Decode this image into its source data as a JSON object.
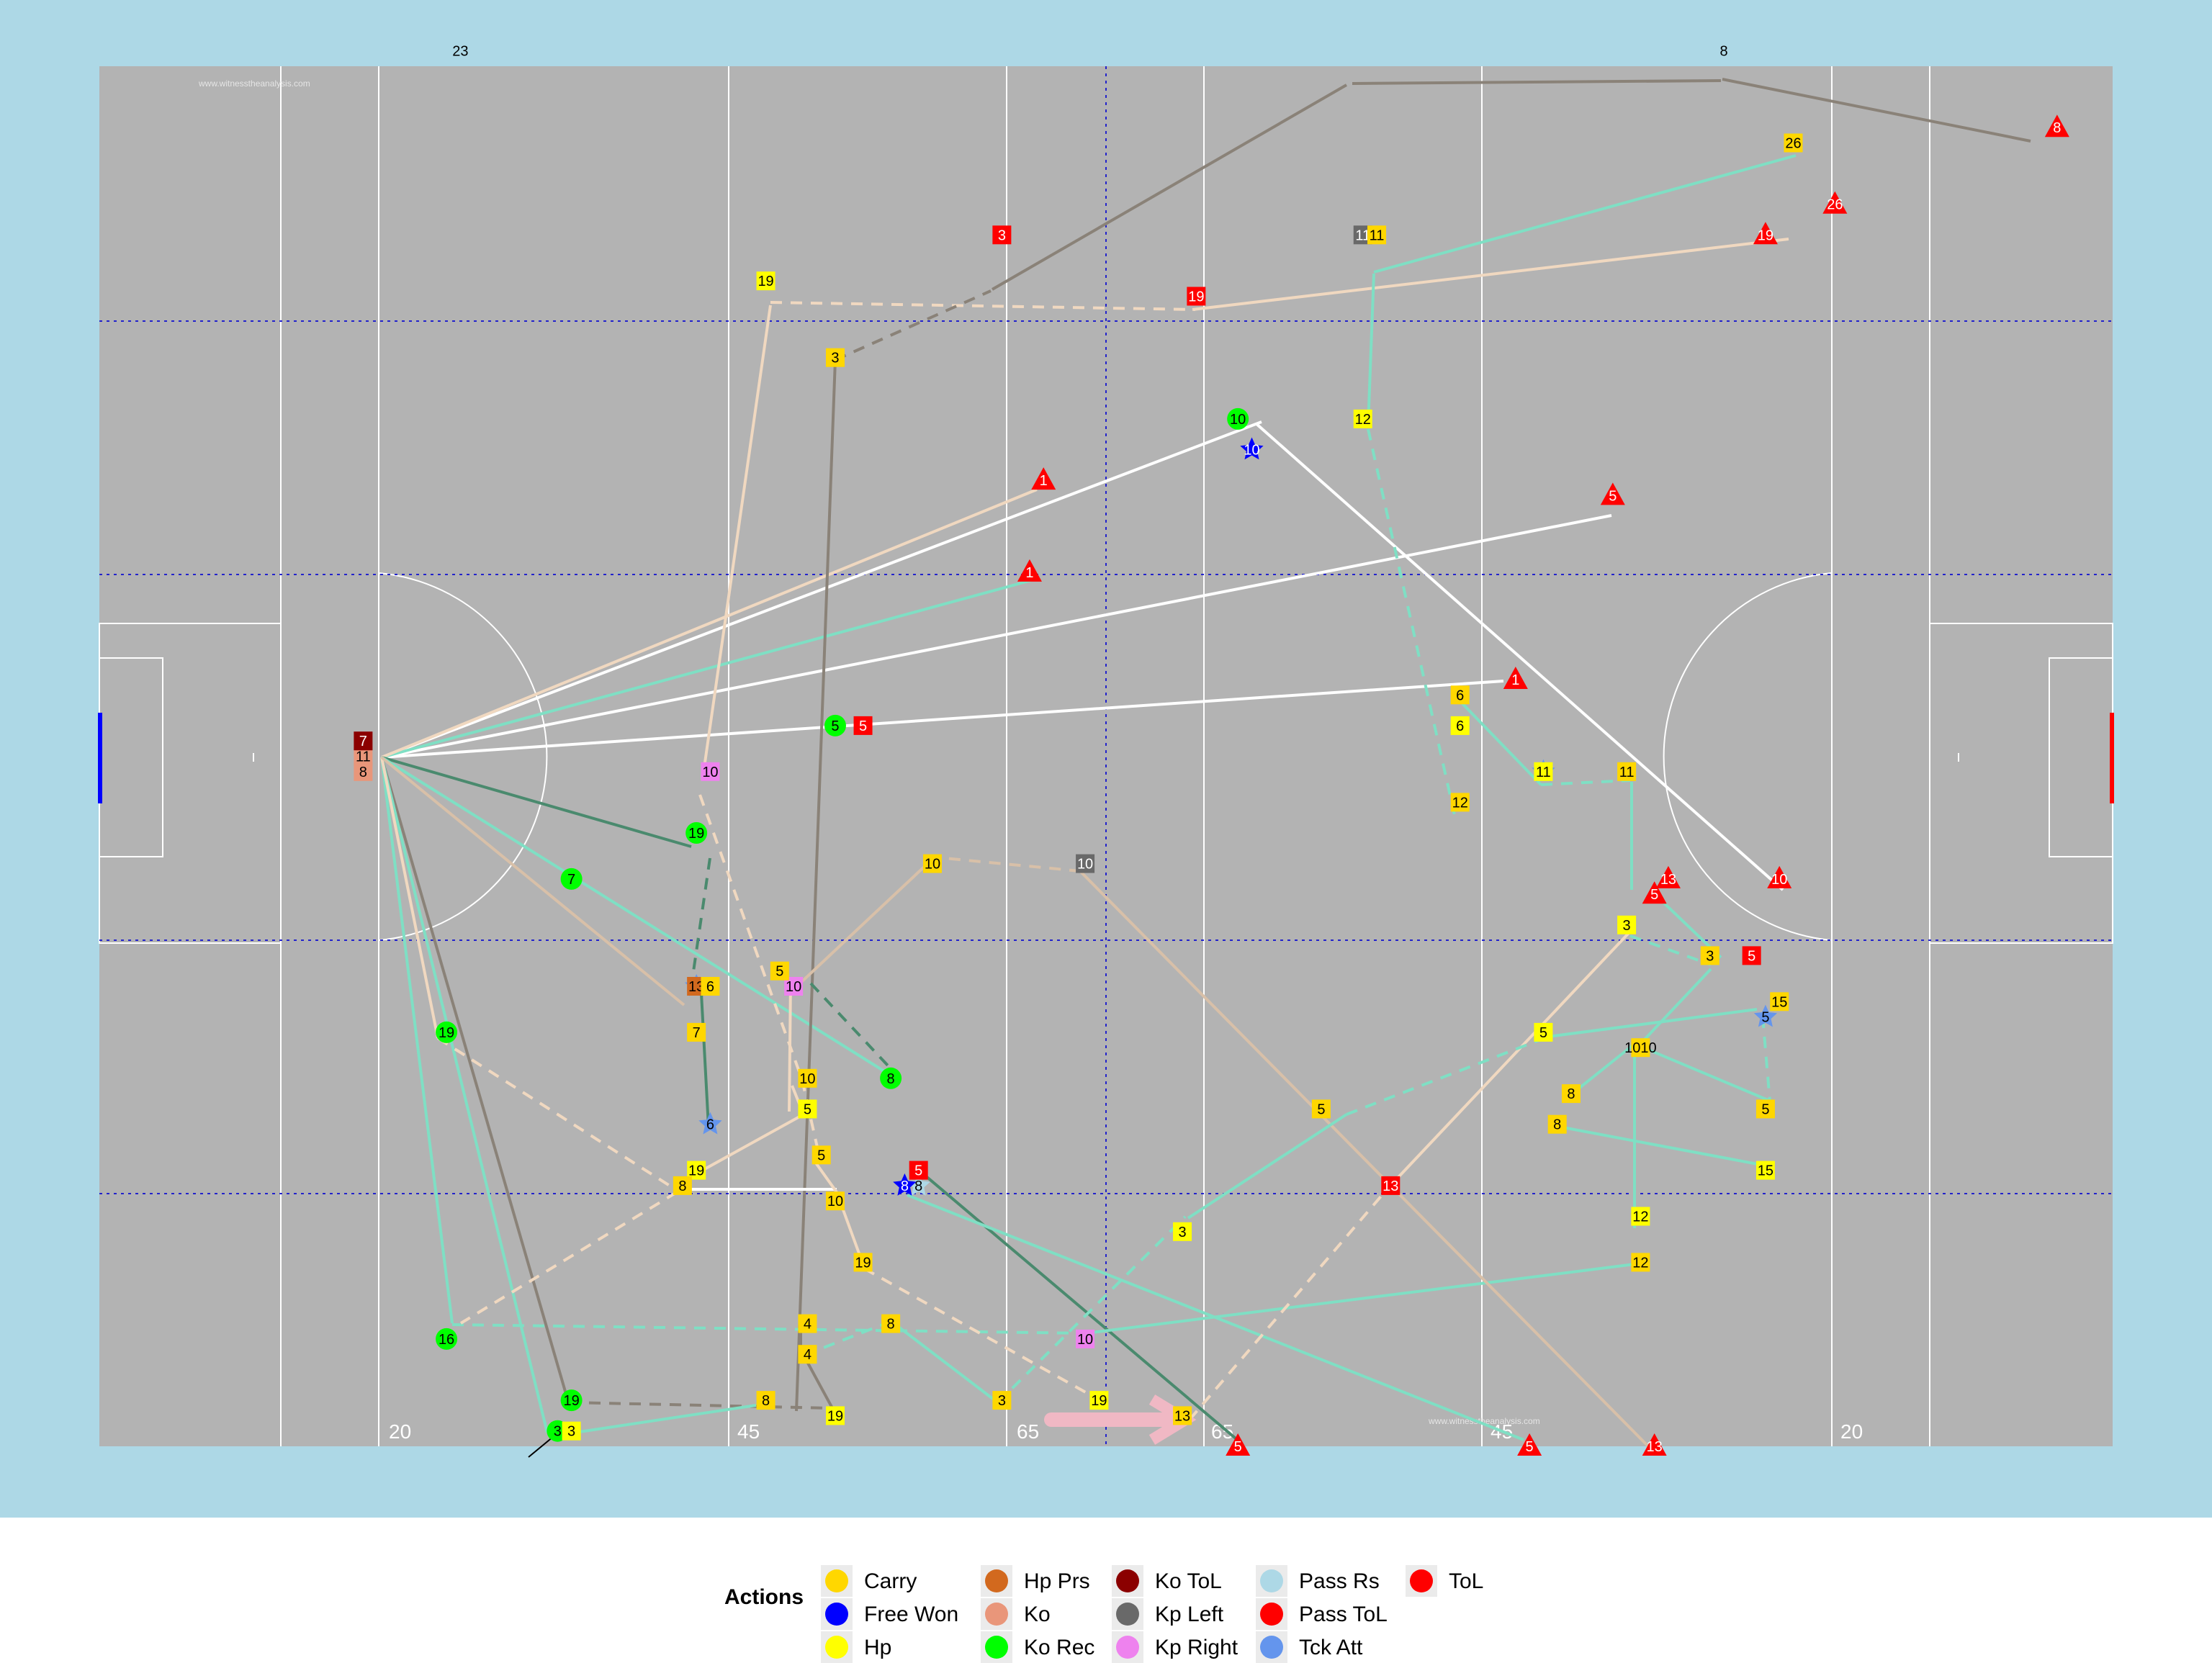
{
  "watermark": "www.witnesstheanalysis.com",
  "distance_labels": [
    "20",
    "45",
    "65",
    "65",
    "45",
    "20"
  ],
  "legend": {
    "title": "Actions",
    "items": [
      {
        "label": "Carry",
        "color": "#ffd700"
      },
      {
        "label": "Free Won",
        "color": "#0000ff"
      },
      {
        "label": "Hp",
        "color": "#ffff00"
      },
      {
        "label": "Hp Prs",
        "color": "#d2691e"
      },
      {
        "label": "Ko",
        "color": "#e9967a"
      },
      {
        "label": "Ko Rec",
        "color": "#00ff00"
      },
      {
        "label": "Ko ToL",
        "color": "#8b0000"
      },
      {
        "label": "Kp Left",
        "color": "#696969"
      },
      {
        "label": "Kp Right",
        "color": "#ee82ee"
      },
      {
        "label": "Pass Rs",
        "color": "#add8e6"
      },
      {
        "label": "Pass ToL",
        "color": "#ff0000"
      },
      {
        "label": "Tck Att",
        "color": "#6495ed"
      },
      {
        "label": "ToL",
        "color": "#ff0000"
      }
    ]
  },
  "chart_data": {
    "type": "scatter",
    "description_units": "pitch coordinates: x in metres along pitch (0-145), y across pitch (0-90)",
    "xlim": [
      0,
      145
    ],
    "ylim": [
      0,
      90
    ],
    "actions": [
      {
        "x": 19,
        "y": 45,
        "label": "11",
        "type": "Ko"
      },
      {
        "x": 19,
        "y": 46,
        "label": "7",
        "type": "Ko ToL"
      },
      {
        "x": 19,
        "y": 44,
        "label": "8",
        "type": "Ko"
      },
      {
        "x": 53,
        "y": 47,
        "label": "5",
        "type": "Ko Rec"
      },
      {
        "x": 55,
        "y": 47,
        "label": "5",
        "type": "Pass ToL"
      },
      {
        "x": 43,
        "y": 40,
        "label": "19",
        "type": "Ko Rec"
      },
      {
        "x": 34,
        "y": 37,
        "label": "7",
        "type": "Ko Rec"
      },
      {
        "x": 25,
        "y": 27,
        "label": "19",
        "type": "Ko Rec"
      },
      {
        "x": 57,
        "y": 24,
        "label": "8",
        "type": "Ko Rec"
      },
      {
        "x": 82,
        "y": 67,
        "label": "10",
        "type": "Ko Rec"
      },
      {
        "x": 25,
        "y": 7,
        "label": "16",
        "type": "Ko Rec"
      },
      {
        "x": 34,
        "y": 3,
        "label": "19",
        "type": "Ko Rec"
      },
      {
        "x": 33,
        "y": 1,
        "label": "3",
        "type": "Ko Rec"
      },
      {
        "x": 44,
        "y": 44,
        "label": "10",
        "type": "Kp Right"
      },
      {
        "x": 50,
        "y": 30,
        "label": "10",
        "type": "Kp Right"
      },
      {
        "x": 71,
        "y": 7,
        "label": "10",
        "type": "Kp Right"
      },
      {
        "x": 71,
        "y": 38,
        "label": "10",
        "type": "Kp Left"
      },
      {
        "x": 91,
        "y": 79,
        "label": "11",
        "type": "Kp Left"
      },
      {
        "x": 26,
        "y": 91,
        "label": "23",
        "type": "Pass Rs"
      },
      {
        "x": 117,
        "y": 91,
        "label": "8",
        "type": "Pass Rs"
      },
      {
        "x": 59,
        "y": 17,
        "label": "8",
        "type": "Pass Rs"
      },
      {
        "x": 58,
        "y": 17,
        "label": "8",
        "type": "Free Won"
      },
      {
        "x": 83,
        "y": 65,
        "label": "10",
        "type": "Free Won"
      },
      {
        "x": 43,
        "y": 30,
        "label": "19",
        "type": "Tck Att"
      },
      {
        "x": 44,
        "y": 21,
        "label": "6",
        "type": "Tck Att"
      },
      {
        "x": 104,
        "y": 44,
        "label": "11",
        "type": "Tck Att"
      },
      {
        "x": 120,
        "y": 28,
        "label": "5",
        "type": "Tck Att"
      },
      {
        "x": 43,
        "y": 30,
        "label": "13",
        "type": "Hp Prs"
      },
      {
        "x": 65,
        "y": 79,
        "label": "3",
        "type": "Pass ToL"
      },
      {
        "x": 79,
        "y": 75,
        "label": "19",
        "type": "Pass ToL"
      },
      {
        "x": 59,
        "y": 18,
        "label": "5",
        "type": "Pass ToL"
      },
      {
        "x": 93,
        "y": 17,
        "label": "13",
        "type": "Pass ToL"
      },
      {
        "x": 119,
        "y": 32,
        "label": "5",
        "type": "Pass ToL"
      },
      {
        "x": 141,
        "y": 86,
        "label": "8",
        "type": "ToL"
      },
      {
        "x": 125,
        "y": 81,
        "label": "26",
        "type": "ToL"
      },
      {
        "x": 120,
        "y": 79,
        "label": "19",
        "type": "ToL"
      },
      {
        "x": 68,
        "y": 63,
        "label": "1",
        "type": "ToL"
      },
      {
        "x": 67,
        "y": 57,
        "label": "1",
        "type": "ToL"
      },
      {
        "x": 109,
        "y": 62,
        "label": "5",
        "type": "ToL"
      },
      {
        "x": 102,
        "y": 50,
        "label": "1",
        "type": "ToL"
      },
      {
        "x": 121,
        "y": 37,
        "label": "10",
        "type": "ToL"
      },
      {
        "x": 112,
        "y": 36,
        "label": "5",
        "type": "ToL"
      },
      {
        "x": 113,
        "y": 37,
        "label": "13",
        "type": "ToL"
      },
      {
        "x": 82,
        "y": 0,
        "label": "5",
        "type": "ToL"
      },
      {
        "x": 103,
        "y": 0,
        "label": "5",
        "type": "ToL"
      },
      {
        "x": 112,
        "y": 0,
        "label": "13",
        "type": "ToL"
      },
      {
        "x": 48,
        "y": 76,
        "label": "19",
        "type": "Hp"
      },
      {
        "x": 53,
        "y": 71,
        "label": "3",
        "type": "Carry"
      },
      {
        "x": 92,
        "y": 79,
        "label": "11",
        "type": "Carry"
      },
      {
        "x": 122,
        "y": 85,
        "label": "26",
        "type": "Carry"
      },
      {
        "x": 91,
        "y": 67,
        "label": "12",
        "type": "Hp"
      },
      {
        "x": 98,
        "y": 49,
        "label": "6",
        "type": "Carry"
      },
      {
        "x": 98,
        "y": 47,
        "label": "6",
        "type": "Hp"
      },
      {
        "x": 98,
        "y": 42,
        "label": "12",
        "type": "Carry"
      },
      {
        "x": 104,
        "y": 44,
        "label": "11",
        "type": "Hp"
      },
      {
        "x": 110,
        "y": 44,
        "label": "11",
        "type": "Carry"
      },
      {
        "x": 60,
        "y": 38,
        "label": "10",
        "type": "Carry"
      },
      {
        "x": 44,
        "y": 30,
        "label": "6",
        "type": "Carry"
      },
      {
        "x": 43,
        "y": 27,
        "label": "7",
        "type": "Carry"
      },
      {
        "x": 49,
        "y": 31,
        "label": "5",
        "type": "Carry"
      },
      {
        "x": 51,
        "y": 24,
        "label": "10",
        "type": "Carry"
      },
      {
        "x": 51,
        "y": 22,
        "label": "5",
        "type": "Hp"
      },
      {
        "x": 52,
        "y": 19,
        "label": "5",
        "type": "Carry"
      },
      {
        "x": 43,
        "y": 18,
        "label": "19",
        "type": "Hp"
      },
      {
        "x": 42,
        "y": 17,
        "label": "8",
        "type": "Carry"
      },
      {
        "x": 53,
        "y": 16,
        "label": "10",
        "type": "Carry"
      },
      {
        "x": 55,
        "y": 12,
        "label": "19",
        "type": "Carry"
      },
      {
        "x": 78,
        "y": 14,
        "label": "3",
        "type": "Hp"
      },
      {
        "x": 51,
        "y": 8,
        "label": "4",
        "type": "Carry"
      },
      {
        "x": 51,
        "y": 6,
        "label": "4",
        "type": "Carry"
      },
      {
        "x": 57,
        "y": 8,
        "label": "8",
        "type": "Carry"
      },
      {
        "x": 48,
        "y": 3,
        "label": "8",
        "type": "Carry"
      },
      {
        "x": 53,
        "y": 2,
        "label": "19",
        "type": "Hp"
      },
      {
        "x": 65,
        "y": 3,
        "label": "3",
        "type": "Carry"
      },
      {
        "x": 72,
        "y": 3,
        "label": "19",
        "type": "Hp"
      },
      {
        "x": 78,
        "y": 2,
        "label": "13",
        "type": "Carry"
      },
      {
        "x": 34,
        "y": 1,
        "label": "3",
        "type": "Hp"
      },
      {
        "x": 88,
        "y": 22,
        "label": "5",
        "type": "Carry"
      },
      {
        "x": 104,
        "y": 27,
        "label": "5",
        "type": "Hp"
      },
      {
        "x": 110,
        "y": 34,
        "label": "3",
        "type": "Hp"
      },
      {
        "x": 116,
        "y": 32,
        "label": "3",
        "type": "Carry"
      },
      {
        "x": 111,
        "y": 26,
        "label": "1010",
        "type": "Carry"
      },
      {
        "x": 106,
        "y": 23,
        "label": "8",
        "type": "Carry"
      },
      {
        "x": 105,
        "y": 21,
        "label": "8",
        "type": "Carry"
      },
      {
        "x": 121,
        "y": 29,
        "label": "15",
        "type": "Carry"
      },
      {
        "x": 120,
        "y": 22,
        "label": "5",
        "type": "Carry"
      },
      {
        "x": 120,
        "y": 18,
        "label": "15",
        "type": "Hp"
      },
      {
        "x": 111,
        "y": 15,
        "label": "12",
        "type": "Hp"
      },
      {
        "x": 111,
        "y": 12,
        "label": "12",
        "type": "Carry"
      }
    ]
  }
}
